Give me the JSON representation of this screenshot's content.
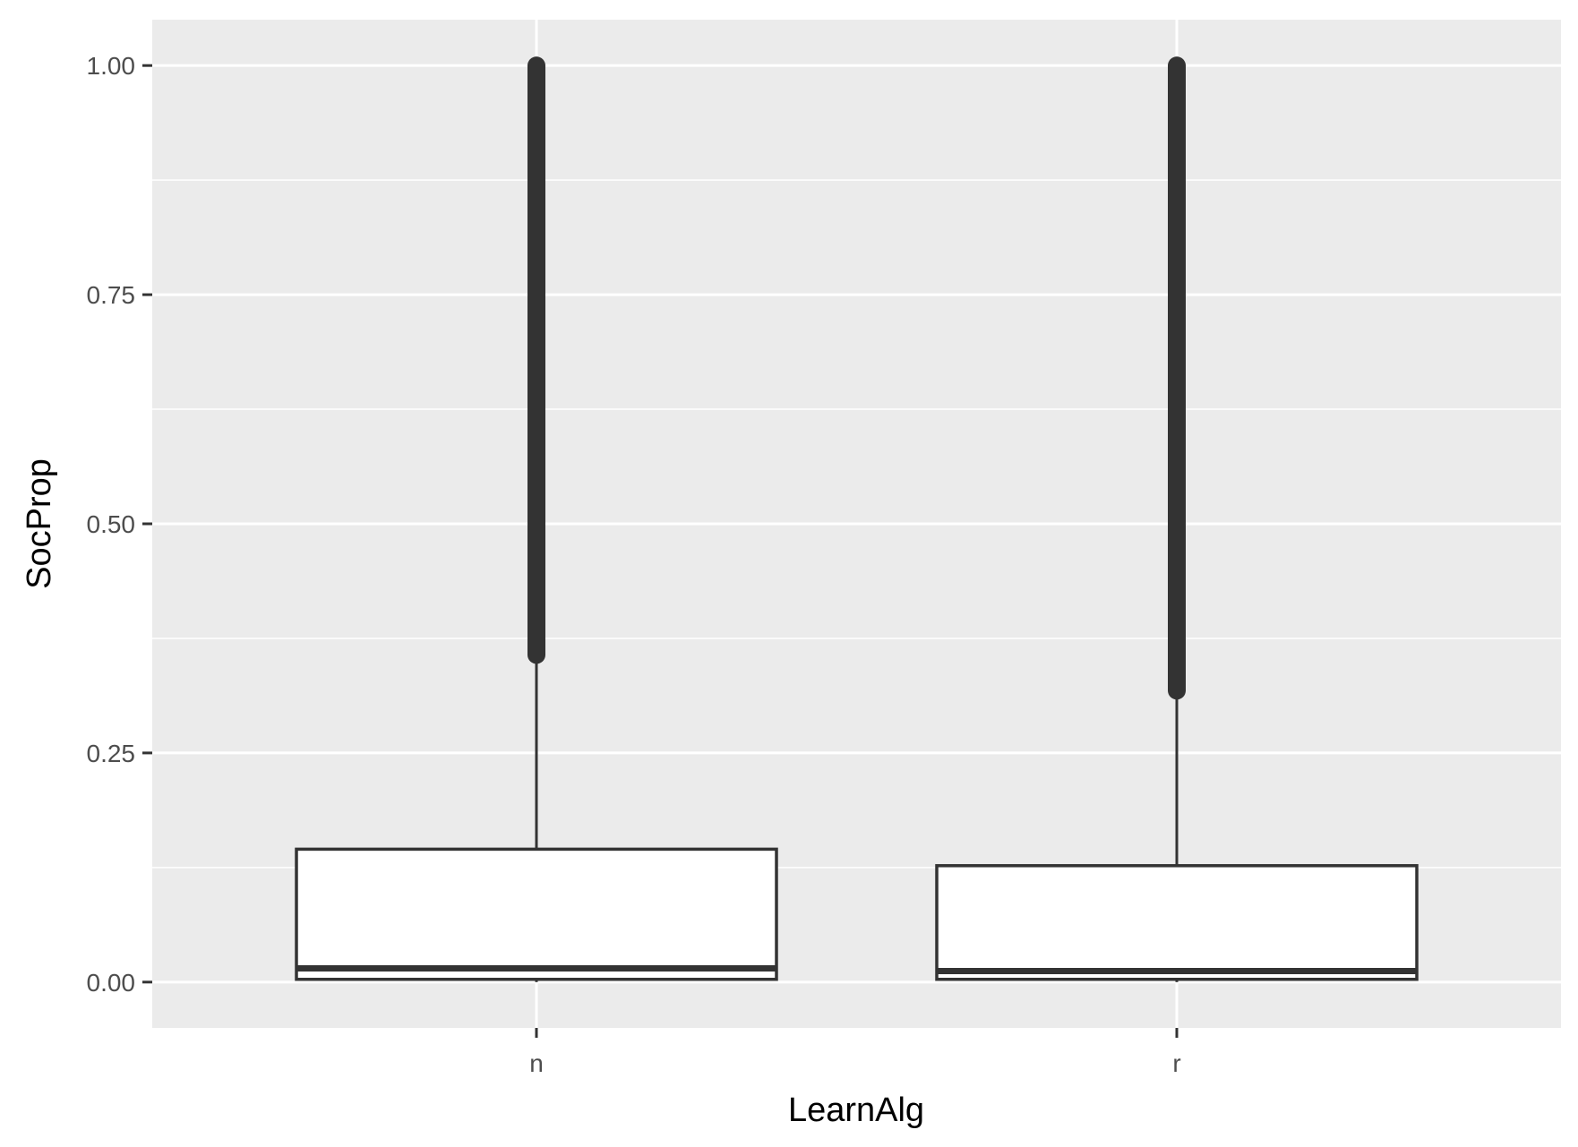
{
  "chart_data": {
    "type": "boxplot",
    "xlabel": "LearnAlg",
    "ylabel": "SocProp",
    "categories": [
      "n",
      "r"
    ],
    "ylim": [
      -0.05,
      1.05
    ],
    "y_ticks": [
      0.0,
      0.25,
      0.5,
      0.75,
      1.0
    ],
    "y_tick_labels": [
      "0.00",
      "0.25",
      "0.50",
      "0.75",
      "1.00"
    ],
    "grid": true,
    "legend": "none",
    "boxes": [
      {
        "category": "n",
        "whisker_low": 0.0,
        "q1": 0.003,
        "median": 0.015,
        "q3": 0.145,
        "whisker_high": 0.357,
        "outliers_min": 0.357,
        "outliers_max": 1.0
      },
      {
        "category": "r",
        "whisker_low": 0.0,
        "q1": 0.003,
        "median": 0.012,
        "q3": 0.127,
        "whisker_high": 0.318,
        "outliers_min": 0.318,
        "outliers_max": 1.0
      }
    ],
    "colors": {
      "panel": "#ebebeb",
      "grid": "#ffffff",
      "box_fill": "#ffffff",
      "box_line": "#333333",
      "outlier": "#333333"
    }
  }
}
